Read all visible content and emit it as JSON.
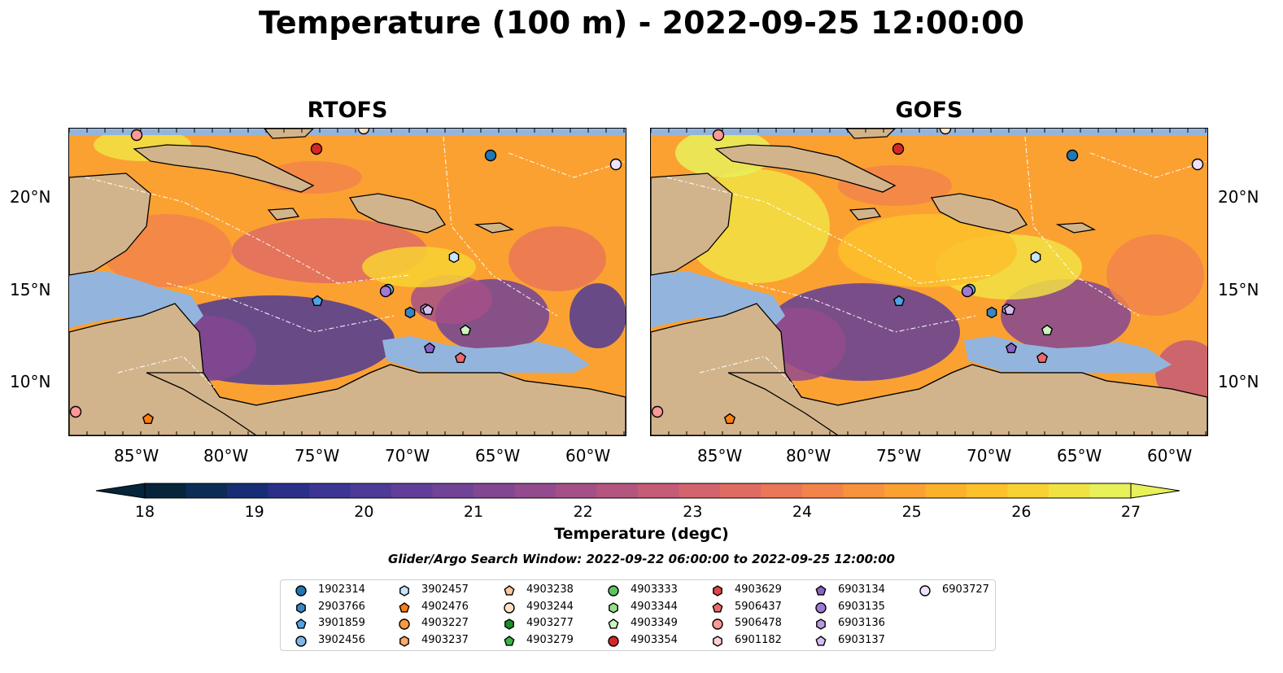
{
  "figure": {
    "title": "Temperature (100 m) - 2022-09-25 12:00:00",
    "panels": [
      {
        "title": "RTOFS"
      },
      {
        "title": "GOFS"
      }
    ],
    "lat_labels": [
      "20°N",
      "15°N",
      "10°N"
    ],
    "lon_labels": [
      "85°W",
      "80°W",
      "75°W",
      "70°W",
      "65°W",
      "60°W"
    ]
  },
  "colorbar": {
    "label": "Temperature (degC)",
    "ticks": [
      "18",
      "19",
      "20",
      "21",
      "22",
      "23",
      "24",
      "25",
      "26",
      "27"
    ],
    "range": [
      18,
      27
    ],
    "extend": "both",
    "colors": [
      "#06243a",
      "#0c2c55",
      "#172e74",
      "#2a2f8a",
      "#3c3594",
      "#4e3b97",
      "#613f98",
      "#714396",
      "#824792",
      "#934b8d",
      "#a45087",
      "#b4557f",
      "#c45b77",
      "#d3636d",
      "#df6c63",
      "#ea7757",
      "#f2844a",
      "#f7923d",
      "#fba132",
      "#fcb12b",
      "#fcc12b",
      "#f8d234",
      "#f1e244",
      "#e8f05a"
    ]
  },
  "search_window": "Glider/Argo Search Window: 2022-09-22 06:00:00 to 2022-09-25 12:00:00",
  "map_colors": {
    "land": "#d2b48c",
    "shelf": "#93b5dd",
    "deep": "#06243a"
  },
  "legend": {
    "entries": [
      {
        "label": "1902314",
        "marker": "circle",
        "color": "#1f77b4"
      },
      {
        "label": "2903766",
        "marker": "hexagon",
        "color": "#3c85c4"
      },
      {
        "label": "3901859",
        "marker": "pentagon",
        "color": "#4fa4e4"
      },
      {
        "label": "3902456",
        "marker": "circle",
        "color": "#7fb8e8"
      },
      {
        "label": "3902457",
        "marker": "hexagon",
        "color": "#c6e5ff"
      },
      {
        "label": "4902476",
        "marker": "pentagon",
        "color": "#ff7f0e"
      },
      {
        "label": "4903227",
        "marker": "circle",
        "color": "#ff9a3c"
      },
      {
        "label": "4903237",
        "marker": "hexagon",
        "color": "#ffaa66"
      },
      {
        "label": "4903238",
        "marker": "pentagon",
        "color": "#ffc79a"
      },
      {
        "label": "4903244",
        "marker": "circle",
        "color": "#ffe0c2"
      },
      {
        "label": "4903277",
        "marker": "hexagon",
        "color": "#1a8f2a"
      },
      {
        "label": "4903279",
        "marker": "pentagon",
        "color": "#39b54a"
      },
      {
        "label": "4903333",
        "marker": "circle",
        "color": "#5cc461"
      },
      {
        "label": "4903344",
        "marker": "hexagon",
        "color": "#98df8a"
      },
      {
        "label": "4903349",
        "marker": "pentagon",
        "color": "#c9f5c0"
      },
      {
        "label": "4903354",
        "marker": "circle",
        "color": "#d62728"
      },
      {
        "label": "4903629",
        "marker": "hexagon",
        "color": "#e04545"
      },
      {
        "label": "5906437",
        "marker": "pentagon",
        "color": "#ee6a6a"
      },
      {
        "label": "5906478",
        "marker": "circle",
        "color": "#ff9896"
      },
      {
        "label": "6901182",
        "marker": "hexagon",
        "color": "#ffd0d0"
      },
      {
        "label": "6903134",
        "marker": "pentagon",
        "color": "#8a63c5"
      },
      {
        "label": "6903135",
        "marker": "circle",
        "color": "#9f7ad4"
      },
      {
        "label": "6903136",
        "marker": "hexagon",
        "color": "#b79be0"
      },
      {
        "label": "6903137",
        "marker": "pentagon",
        "color": "#d4bff0"
      },
      {
        "label": "6903727",
        "marker": "circle",
        "color": "#f0e2ff"
      }
    ]
  }
}
